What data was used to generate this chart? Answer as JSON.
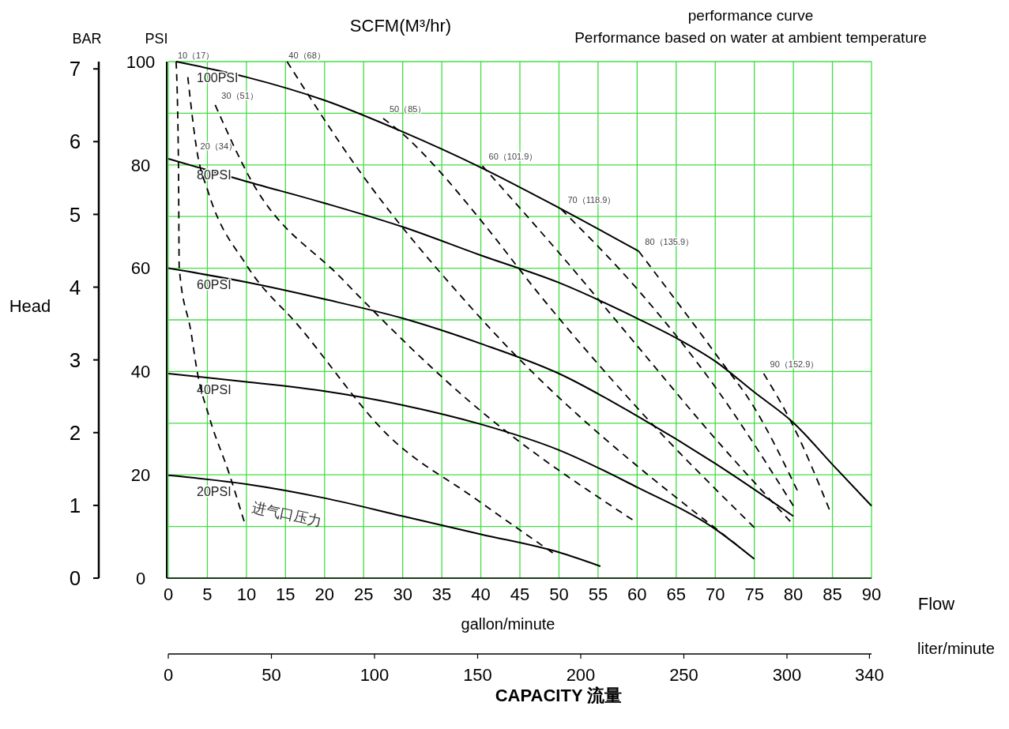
{
  "chart_data": {
    "type": "line",
    "title": "performance curve",
    "subtitle": "Performance based on water at ambient temperature",
    "xlabel": "gallon/minute",
    "ylabel": "PSI",
    "y2label": "BAR",
    "x2label": "liter/minute",
    "annotations": [
      "SCFM(M³/hr)",
      "Head",
      "Flow",
      "CAPACITY 流量",
      "进气口压力"
    ],
    "xlim": [
      0,
      90
    ],
    "xticks": [
      0,
      5,
      10,
      15,
      20,
      25,
      30,
      35,
      40,
      45,
      50,
      55,
      60,
      65,
      70,
      75,
      80,
      85,
      90
    ],
    "ylim": [
      0,
      100
    ],
    "yticks": [
      0,
      {
        "value": 10,
        "label": null
      },
      20,
      {
        "value": 30,
        "label": null
      },
      40,
      {
        "value": 50,
        "label": null
      },
      60,
      {
        "value": 70,
        "label": null
      },
      80,
      {
        "value": 90,
        "label": null
      },
      100
    ],
    "y2lim": [
      0,
      7.1
    ],
    "y2ticks": [
      0,
      1,
      2,
      3,
      4,
      5,
      6,
      7
    ],
    "x2lim": [
      0,
      341
    ],
    "x2ticks": [
      0,
      50,
      100,
      150,
      200,
      250,
      300,
      340
    ],
    "grid": true,
    "series": [
      {
        "name": "100PSI",
        "line_style": "solid",
        "color": "#000000",
        "x": [
          1,
          10,
          20,
          30,
          40,
          50,
          60.2
        ],
        "values": [
          100,
          97,
          92.5,
          86.4,
          79.5,
          71.7,
          63.3
        ]
      },
      {
        "name": "80PSI",
        "line_style": "solid",
        "color": "#000000",
        "x": [
          0,
          10,
          20,
          30,
          40,
          50,
          60,
          65,
          70,
          75,
          80,
          85,
          90
        ],
        "values": [
          81.2,
          76.8,
          72.6,
          68,
          62.5,
          57.2,
          50.3,
          46.5,
          42,
          36,
          30.1,
          22,
          14
        ]
      },
      {
        "name": "60PSI",
        "line_style": "solid",
        "color": "#000000",
        "x": [
          0,
          10,
          20,
          30,
          40,
          50,
          60,
          70,
          80
        ],
        "values": [
          60,
          57.3,
          54,
          50.3,
          45.4,
          39.6,
          31.4,
          22.2,
          12
        ]
      },
      {
        "name": "40PSI",
        "line_style": "solid",
        "color": "#000000",
        "x": [
          0,
          10,
          20,
          30,
          40,
          50,
          60,
          70,
          75
        ],
        "values": [
          39.6,
          38,
          36.2,
          33.5,
          29.8,
          24.8,
          17.6,
          9.5,
          3.7
        ]
      },
      {
        "name": "20PSI",
        "line_style": "solid",
        "color": "#000000",
        "x": [
          0,
          10,
          20,
          30,
          40,
          50,
          55.3
        ],
        "values": [
          19.9,
          18.2,
          15.5,
          12,
          8.5,
          5,
          2.3
        ]
      },
      {
        "name": "10（17）",
        "line_style": "dashed",
        "color": "#000000",
        "x": [
          1,
          1.3,
          1.4,
          2.9,
          3.7,
          5.3,
          7.8,
          9.7
        ],
        "values": [
          100,
          80,
          60,
          47.7,
          40,
          30.9,
          20.2,
          11
        ]
      },
      {
        "name": "20（34）",
        "line_style": "dashed",
        "color": "#000000",
        "x": [
          2.5,
          3.7,
          5.1,
          10.1,
          16.7,
          28.3,
          39.1,
          49.2
        ],
        "values": [
          97,
          82.4,
          74.8,
          60.4,
          48.8,
          27.4,
          15.6,
          4.9
        ]
      },
      {
        "name": "30（51）",
        "line_style": "dashed",
        "color": "#000000",
        "x": [
          6,
          10.5,
          22.2,
          39.1,
          59.4
        ],
        "values": [
          91.6,
          77.3,
          58,
          33.5,
          11.3
        ]
      },
      {
        "name": "40（68）",
        "line_style": "dashed",
        "color": "#000000",
        "x": [
          15.2,
          24,
          39.1,
          72.8
        ],
        "values": [
          100,
          79.8,
          51.8,
          6.4
        ]
      },
      {
        "name": "50（85）",
        "line_style": "dashed",
        "color": "#000000",
        "x": [
          27.5,
          30.3,
          34.1,
          40.1,
          47.5,
          60,
          75
        ],
        "values": [
          89,
          85.6,
          79.8,
          69.1,
          54.9,
          33,
          9.8
        ]
      },
      {
        "name": "60（101.9）",
        "line_style": "dashed",
        "color": "#000000",
        "x": [
          40.2,
          50,
          60,
          70,
          79.6
        ],
        "values": [
          79.8,
          63,
          45,
          27,
          11
        ]
      },
      {
        "name": "70（118.9）",
        "line_style": "dashed",
        "color": "#000000",
        "x": [
          50.3,
          60,
          70,
          80
        ],
        "values": [
          71.4,
          56,
          37,
          14
        ]
      },
      {
        "name": "80（135.9）",
        "line_style": "dashed",
        "color": "#000000",
        "x": [
          60.2,
          70.2,
          75,
          80.5
        ],
        "values": [
          63.3,
          43.1,
          33,
          17
        ]
      },
      {
        "name": "90（152.9）",
        "line_style": "dashed",
        "color": "#000000",
        "x": [
          76.2,
          80,
          84.6
        ],
        "values": [
          39.6,
          29.4,
          13.3
        ]
      }
    ]
  }
}
